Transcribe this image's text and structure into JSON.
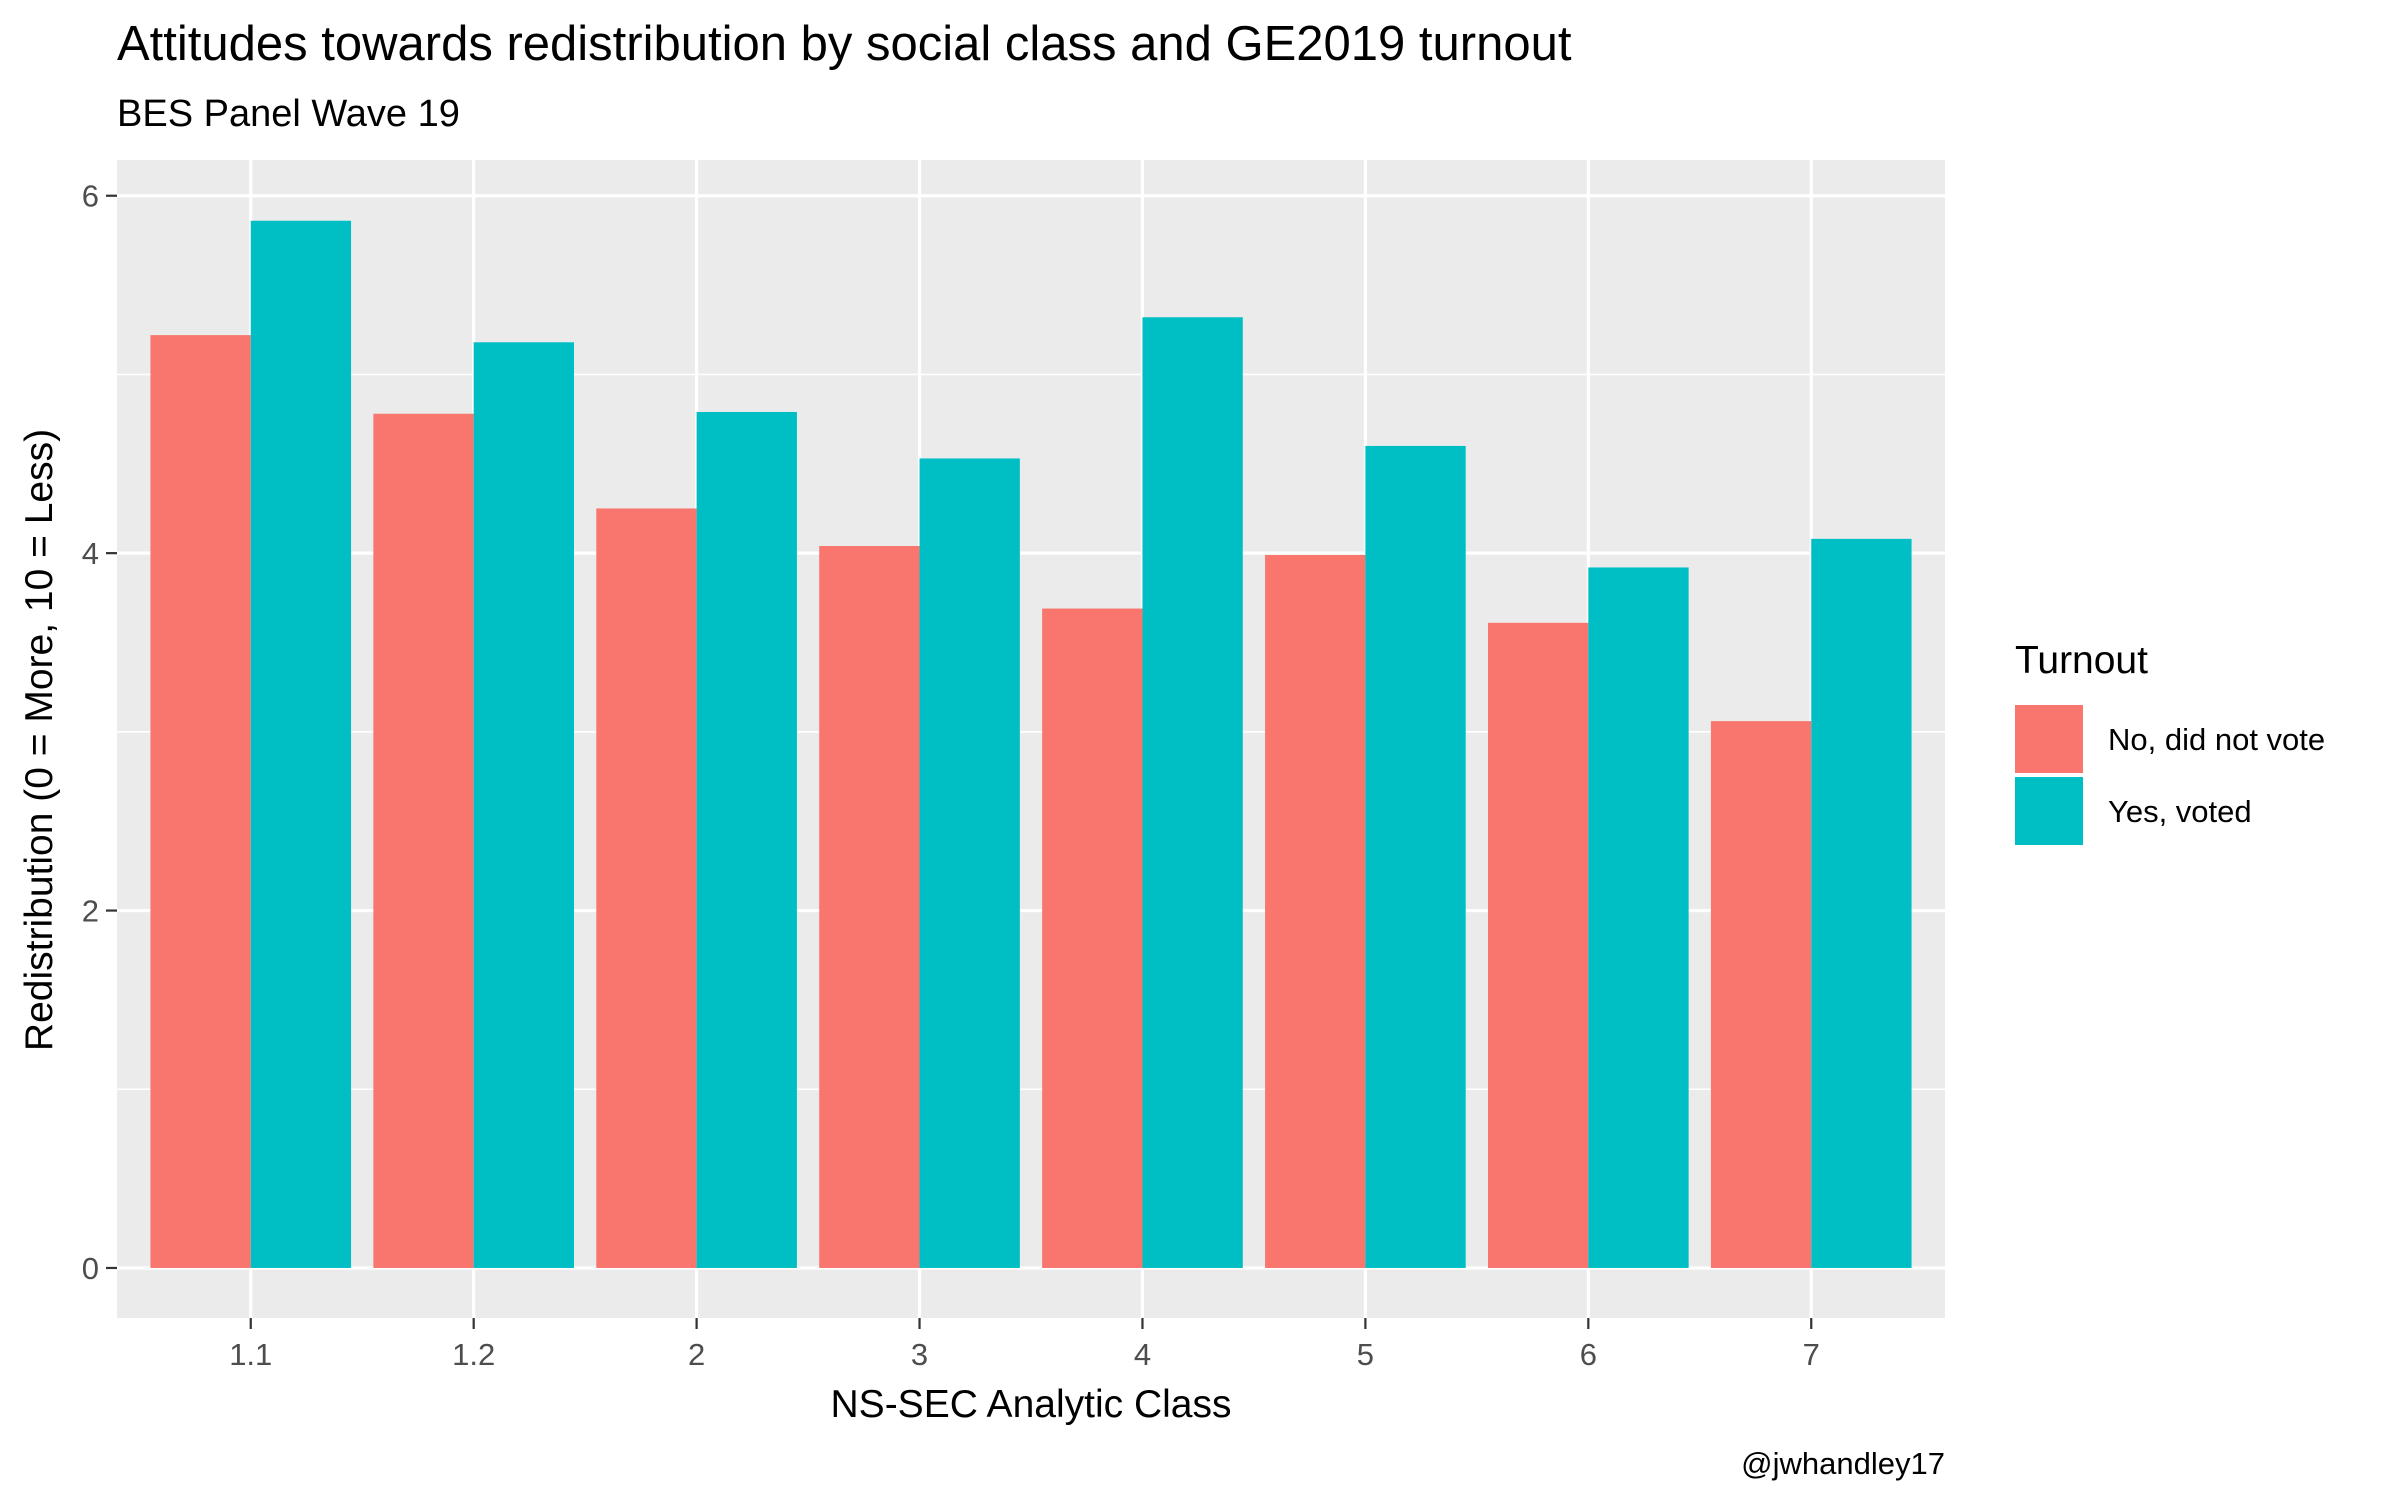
{
  "colors": {
    "panel_background": "#EBEBEB",
    "grid_major": "#FFFFFF",
    "tick": "#333333",
    "tick_label": "#4D4D4D"
  },
  "chart_data": {
    "type": "bar",
    "title": "Attitudes towards redistribution by social class and GE2019 turnout",
    "subtitle": "BES Panel Wave 19",
    "xlabel": "NS-SEC Analytic Class",
    "ylabel": "Redistribution (0 = More, 10 = Less)",
    "caption": "@jwhandley17",
    "categories": [
      "1.1",
      "1.2",
      "2",
      "3",
      "4",
      "5",
      "6",
      "7"
    ],
    "ylim": [
      -0.28,
      6.2
    ],
    "yticks": [
      0,
      2,
      4,
      6
    ],
    "grid": true,
    "legend": {
      "title": "Turnout",
      "position": "right"
    },
    "series": [
      {
        "name": "No, did not vote",
        "color": "#F8766D",
        "values": [
          5.22,
          4.78,
          4.25,
          4.04,
          3.69,
          3.99,
          3.61,
          3.06
        ]
      },
      {
        "name": "Yes, voted",
        "color": "#00BFC4",
        "values": [
          5.86,
          5.18,
          4.79,
          4.53,
          5.32,
          4.6,
          3.92,
          4.08
        ]
      }
    ]
  }
}
